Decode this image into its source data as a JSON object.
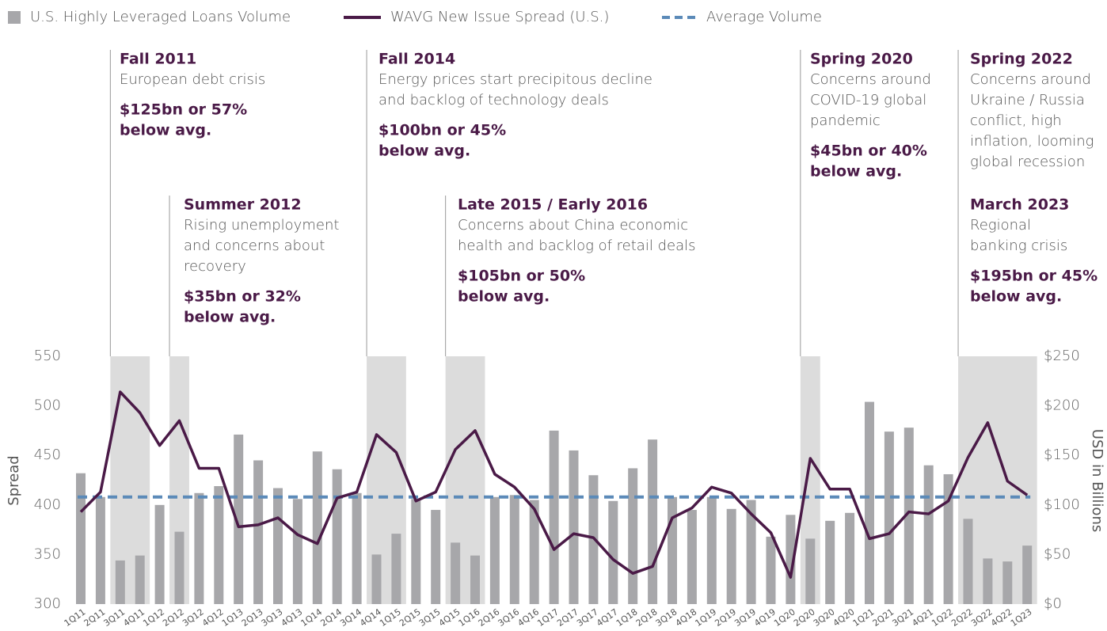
{
  "chart_data": {
    "type": "bar_line",
    "categories": [
      "1Q11",
      "2Q11",
      "3Q11",
      "4Q11",
      "1Q12",
      "2Q12",
      "3Q12",
      "4Q12",
      "1Q13",
      "2Q13",
      "3Q13",
      "4Q13",
      "1Q14",
      "2Q14",
      "3Q14",
      "4Q14",
      "1Q15",
      "2Q15",
      "3Q15",
      "4Q15",
      "1Q16",
      "2Q16",
      "3Q16",
      "4Q16",
      "1Q17",
      "2Q17",
      "3Q17",
      "4Q17",
      "1Q18",
      "2Q18",
      "3Q18",
      "4Q18",
      "1Q19",
      "2Q19",
      "3Q19",
      "4Q19",
      "1Q20",
      "2Q20",
      "3Q20",
      "4Q20",
      "1Q21",
      "2Q21",
      "3Q21",
      "4Q21",
      "1Q22",
      "2Q22",
      "3Q22",
      "4Q22",
      "1Q23"
    ],
    "series": [
      {
        "name": "U.S. Highly Leveraged Loans Volume",
        "type": "bar",
        "axis": "y2",
        "color": "#a7a7aa",
        "values": [
          132,
          108,
          44,
          49,
          100,
          73,
          112,
          119,
          171,
          145,
          117,
          106,
          154,
          136,
          112,
          50,
          71,
          106,
          95,
          62,
          49,
          108,
          110,
          105,
          175,
          155,
          130,
          104,
          137,
          166,
          108,
          95,
          108,
          96,
          105,
          68,
          90,
          66,
          84,
          92,
          204,
          174,
          178,
          140,
          131,
          86,
          46,
          43,
          59
        ]
      },
      {
        "name": "WAVG New Issue Spread (U.S.)",
        "type": "line",
        "axis": "y",
        "color": "#4a1a47",
        "values": [
          393,
          413,
          514,
          493,
          460,
          485,
          437,
          437,
          378,
          380,
          387,
          370,
          361,
          407,
          413,
          471,
          453,
          404,
          413,
          456,
          475,
          431,
          418,
          396,
          355,
          371,
          367,
          345,
          331,
          338,
          387,
          397,
          418,
          412,
          391,
          372,
          327,
          447,
          416,
          416,
          366,
          371,
          393,
          391,
          404,
          448,
          483,
          424,
          410
        ]
      }
    ],
    "reference_line": {
      "name": "Average Volume",
      "axis": "y2",
      "color": "#5b8ab8",
      "value": 108
    },
    "ylabel": "Spread",
    "y2label": "USD in Billions",
    "ylim": [
      300,
      550
    ],
    "yticks": [
      300,
      350,
      400,
      450,
      500,
      550
    ],
    "y2lim": [
      0,
      250
    ],
    "y2ticks": [
      {
        "value": 0,
        "label": "$0"
      },
      {
        "value": 50,
        "label": "$50"
      },
      {
        "value": 100,
        "label": "$100"
      },
      {
        "value": 150,
        "label": "$150"
      },
      {
        "value": 200,
        "label": "$200"
      },
      {
        "value": 250,
        "label": "$250"
      }
    ],
    "shade_color": "#dcdcdc",
    "annotations": [
      {
        "title": "Fall 2011",
        "description": [
          "European debt crisis"
        ],
        "impact": [
          "$125bn or 57%",
          "below avg."
        ],
        "period": [
          "3Q11",
          "4Q11"
        ]
      },
      {
        "title": "Summer 2012",
        "description": [
          "Rising unemployment",
          "and concerns about",
          "recovery"
        ],
        "impact": [
          "$35bn or 32%",
          "below avg."
        ],
        "period": [
          "2Q12",
          "2Q12"
        ]
      },
      {
        "title": "Fall 2014",
        "description": [
          "Energy prices start precipitous decline",
          "and backlog of technology deals"
        ],
        "impact": [
          "$100bn or 45%",
          "below avg."
        ],
        "period": [
          "4Q14",
          "1Q15"
        ]
      },
      {
        "title": "Late 2015 / Early 2016",
        "description": [
          "Concerns about China economic",
          "health and backlog of retail deals"
        ],
        "impact": [
          "$105bn or 50%",
          "below avg."
        ],
        "period": [
          "4Q15",
          "1Q16"
        ]
      },
      {
        "title": "Spring 2020",
        "description": [
          "Concerns around",
          "COVID-19 global",
          "pandemic"
        ],
        "impact": [
          "$45bn or 40%",
          "below avg."
        ],
        "period": [
          "2Q20",
          "2Q20"
        ]
      },
      {
        "title": "Spring 2022",
        "description": [
          "Concerns around",
          "Ukraine / Russia",
          "conflict, high",
          "inflation, looming",
          "global recession"
        ],
        "impact": [],
        "period": [
          "2Q22",
          "1Q23"
        ]
      },
      {
        "title": "March 2023",
        "description": [
          "Regional",
          "banking crisis"
        ],
        "impact": [
          "$195bn or 45%",
          "below avg."
        ]
      }
    ]
  }
}
